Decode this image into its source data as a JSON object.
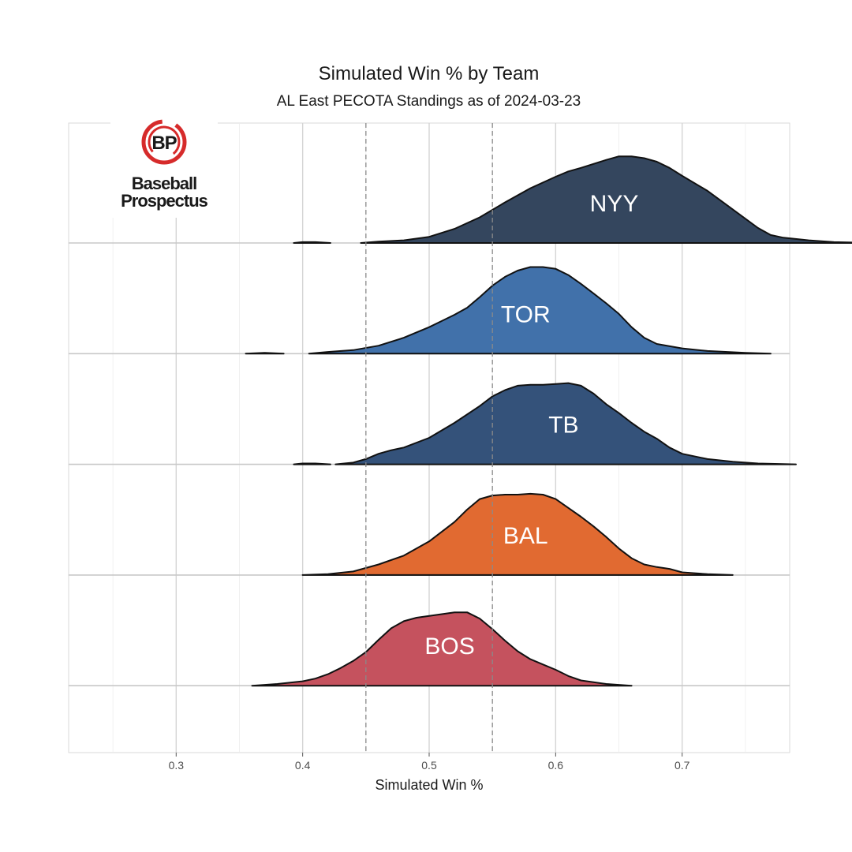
{
  "chart_data": {
    "type": "ridgeline",
    "title": "Simulated Win % by Team",
    "subtitle": "AL East PECOTA Standings as of 2024-03-23",
    "xlabel": "Simulated Win %",
    "xlim": [
      0.215,
      0.785
    ],
    "xticks": [
      0.3,
      0.4,
      0.5,
      0.6,
      0.7
    ],
    "xtick_labels": [
      "0.3",
      "0.4",
      "0.5",
      "0.6",
      "0.7"
    ],
    "reference_lines": [
      0.45,
      0.55
    ],
    "grid": true,
    "series": [
      {
        "name": "NYY",
        "color": "#34465e",
        "density": [
          [
            0.393,
            0
          ],
          [
            0.4,
            0.01
          ],
          [
            0.41,
            0.01
          ],
          [
            0.422,
            0
          ],
          [
            0.446,
            0
          ],
          [
            0.46,
            0.015
          ],
          [
            0.48,
            0.03
          ],
          [
            0.5,
            0.07
          ],
          [
            0.52,
            0.16
          ],
          [
            0.54,
            0.29
          ],
          [
            0.56,
            0.46
          ],
          [
            0.58,
            0.62
          ],
          [
            0.6,
            0.75
          ],
          [
            0.61,
            0.81
          ],
          [
            0.62,
            0.85
          ],
          [
            0.64,
            0.94
          ],
          [
            0.65,
            0.98
          ],
          [
            0.66,
            0.98
          ],
          [
            0.67,
            0.96
          ],
          [
            0.68,
            0.92
          ],
          [
            0.69,
            0.85
          ],
          [
            0.7,
            0.76
          ],
          [
            0.72,
            0.59
          ],
          [
            0.74,
            0.38
          ],
          [
            0.76,
            0.17
          ],
          [
            0.77,
            0.09
          ],
          [
            0.78,
            0.06
          ],
          [
            0.8,
            0.03
          ],
          [
            0.82,
            0.01
          ],
          [
            0.85,
            0
          ]
        ]
      },
      {
        "name": "TOR",
        "color": "#4171aa",
        "density": [
          [
            0.355,
            0
          ],
          [
            0.37,
            0.01
          ],
          [
            0.385,
            0
          ],
          [
            0.405,
            0
          ],
          [
            0.42,
            0.02
          ],
          [
            0.44,
            0.04
          ],
          [
            0.46,
            0.09
          ],
          [
            0.48,
            0.18
          ],
          [
            0.5,
            0.3
          ],
          [
            0.51,
            0.37
          ],
          [
            0.52,
            0.44
          ],
          [
            0.53,
            0.52
          ],
          [
            0.54,
            0.64
          ],
          [
            0.55,
            0.77
          ],
          [
            0.56,
            0.87
          ],
          [
            0.57,
            0.94
          ],
          [
            0.58,
            0.98
          ],
          [
            0.59,
            0.98
          ],
          [
            0.6,
            0.96
          ],
          [
            0.61,
            0.89
          ],
          [
            0.62,
            0.79
          ],
          [
            0.63,
            0.68
          ],
          [
            0.64,
            0.57
          ],
          [
            0.65,
            0.45
          ],
          [
            0.66,
            0.3
          ],
          [
            0.67,
            0.18
          ],
          [
            0.68,
            0.11
          ],
          [
            0.7,
            0.06
          ],
          [
            0.72,
            0.03
          ],
          [
            0.75,
            0.01
          ],
          [
            0.77,
            0
          ]
        ]
      },
      {
        "name": "TB",
        "color": "#34527a",
        "density": [
          [
            0.393,
            0
          ],
          [
            0.4,
            0.01
          ],
          [
            0.41,
            0.01
          ],
          [
            0.422,
            0
          ],
          [
            0.426,
            0
          ],
          [
            0.44,
            0.02
          ],
          [
            0.45,
            0.06
          ],
          [
            0.46,
            0.12
          ],
          [
            0.47,
            0.16
          ],
          [
            0.48,
            0.19
          ],
          [
            0.5,
            0.3
          ],
          [
            0.52,
            0.47
          ],
          [
            0.54,
            0.66
          ],
          [
            0.55,
            0.77
          ],
          [
            0.56,
            0.84
          ],
          [
            0.57,
            0.89
          ],
          [
            0.58,
            0.9
          ],
          [
            0.59,
            0.9
          ],
          [
            0.6,
            0.91
          ],
          [
            0.61,
            0.92
          ],
          [
            0.62,
            0.89
          ],
          [
            0.63,
            0.8
          ],
          [
            0.64,
            0.68
          ],
          [
            0.65,
            0.58
          ],
          [
            0.66,
            0.47
          ],
          [
            0.67,
            0.37
          ],
          [
            0.68,
            0.29
          ],
          [
            0.69,
            0.19
          ],
          [
            0.7,
            0.12
          ],
          [
            0.72,
            0.06
          ],
          [
            0.74,
            0.03
          ],
          [
            0.76,
            0.01
          ],
          [
            0.79,
            0
          ]
        ]
      },
      {
        "name": "BAL",
        "color": "#e16a31",
        "density": [
          [
            0.4,
            0
          ],
          [
            0.42,
            0.01
          ],
          [
            0.44,
            0.04
          ],
          [
            0.46,
            0.12
          ],
          [
            0.48,
            0.22
          ],
          [
            0.5,
            0.38
          ],
          [
            0.52,
            0.6
          ],
          [
            0.53,
            0.74
          ],
          [
            0.54,
            0.86
          ],
          [
            0.55,
            0.9
          ],
          [
            0.56,
            0.91
          ],
          [
            0.57,
            0.91
          ],
          [
            0.58,
            0.92
          ],
          [
            0.59,
            0.91
          ],
          [
            0.6,
            0.86
          ],
          [
            0.61,
            0.76
          ],
          [
            0.62,
            0.66
          ],
          [
            0.63,
            0.55
          ],
          [
            0.64,
            0.43
          ],
          [
            0.65,
            0.3
          ],
          [
            0.66,
            0.19
          ],
          [
            0.67,
            0.12
          ],
          [
            0.68,
            0.09
          ],
          [
            0.69,
            0.07
          ],
          [
            0.7,
            0.03
          ],
          [
            0.72,
            0.01
          ],
          [
            0.74,
            0
          ]
        ]
      },
      {
        "name": "BOS",
        "color": "#c5525e",
        "density": [
          [
            0.36,
            0
          ],
          [
            0.38,
            0.02
          ],
          [
            0.4,
            0.05
          ],
          [
            0.41,
            0.08
          ],
          [
            0.42,
            0.13
          ],
          [
            0.43,
            0.2
          ],
          [
            0.44,
            0.28
          ],
          [
            0.45,
            0.38
          ],
          [
            0.46,
            0.52
          ],
          [
            0.47,
            0.65
          ],
          [
            0.48,
            0.73
          ],
          [
            0.49,
            0.77
          ],
          [
            0.5,
            0.79
          ],
          [
            0.51,
            0.81
          ],
          [
            0.52,
            0.83
          ],
          [
            0.53,
            0.83
          ],
          [
            0.54,
            0.76
          ],
          [
            0.55,
            0.64
          ],
          [
            0.56,
            0.51
          ],
          [
            0.57,
            0.39
          ],
          [
            0.58,
            0.3
          ],
          [
            0.59,
            0.24
          ],
          [
            0.6,
            0.18
          ],
          [
            0.61,
            0.11
          ],
          [
            0.62,
            0.06
          ],
          [
            0.64,
            0.02
          ],
          [
            0.66,
            0
          ]
        ]
      }
    ]
  },
  "logo": {
    "monogram": "BP",
    "line1": "Baseball",
    "line2": "Prospectus",
    "ring_color": "#d62b2b"
  }
}
